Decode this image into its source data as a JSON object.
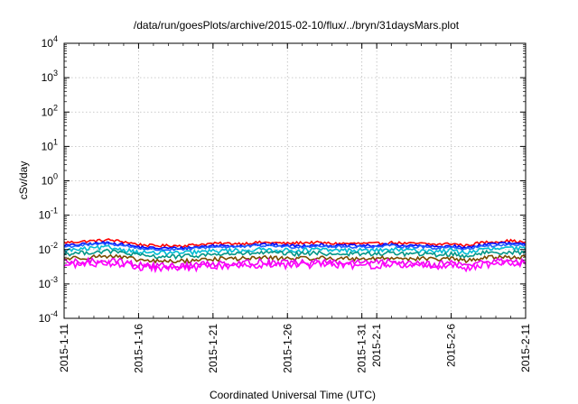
{
  "chart_data": {
    "type": "line",
    "title": "/data/run/goesPlots/archive/2015-02-10/flux/../bryn/31daysMars.plot",
    "xlabel": "Coordinated Universal Time (UTC)",
    "ylabel": "cSv/day",
    "yscale": "log",
    "ylim": [
      0.0001,
      10000
    ],
    "xlim": [
      "2015-1-11",
      "2015-2-11"
    ],
    "grid": true,
    "legend": "none",
    "y_ticks": [
      {
        "value": 0.0001,
        "base": "10",
        "exp": "-4"
      },
      {
        "value": 0.001,
        "base": "10",
        "exp": "-3"
      },
      {
        "value": 0.01,
        "base": "10",
        "exp": "-2"
      },
      {
        "value": 0.1,
        "base": "10",
        "exp": "-1"
      },
      {
        "value": 1,
        "base": "10",
        "exp": "0"
      },
      {
        "value": 10,
        "base": "10",
        "exp": "1"
      },
      {
        "value": 100,
        "base": "10",
        "exp": "2"
      },
      {
        "value": 1000,
        "base": "10",
        "exp": "3"
      },
      {
        "value": 10000,
        "base": "10",
        "exp": "4"
      }
    ],
    "x_ticks": [
      "2015-1-11",
      "2015-1-16",
      "2015-1-21",
      "2015-1-26",
      "2015-1-31",
      "2015-2-1",
      "2015-2-6",
      "2015-2-11"
    ],
    "series": [
      {
        "color": "#ff0000",
        "values_by_day": [
          0.016,
          0.017,
          0.018,
          0.019,
          0.017,
          0.014,
          0.013,
          0.013,
          0.013,
          0.014,
          0.015,
          0.015,
          0.015,
          0.016,
          0.016,
          0.015,
          0.016,
          0.016,
          0.015,
          0.015,
          0.015,
          0.015,
          0.016,
          0.015,
          0.015,
          0.014,
          0.015,
          0.013,
          0.016,
          0.017,
          0.018,
          0.016
        ]
      },
      {
        "color": "#0000ff",
        "values_by_day": [
          0.013,
          0.014,
          0.015,
          0.016,
          0.014,
          0.012,
          0.011,
          0.011,
          0.011,
          0.012,
          0.013,
          0.013,
          0.013,
          0.014,
          0.014,
          0.013,
          0.013,
          0.014,
          0.013,
          0.013,
          0.013,
          0.013,
          0.014,
          0.013,
          0.013,
          0.012,
          0.013,
          0.011,
          0.014,
          0.015,
          0.015,
          0.014
        ]
      },
      {
        "color": "#2060ff",
        "values_by_day": [
          0.012,
          0.013,
          0.014,
          0.015,
          0.013,
          0.011,
          0.01,
          0.01,
          0.01,
          0.011,
          0.012,
          0.012,
          0.012,
          0.013,
          0.013,
          0.012,
          0.012,
          0.013,
          0.012,
          0.012,
          0.012,
          0.012,
          0.013,
          0.012,
          0.012,
          0.011,
          0.012,
          0.01,
          0.013,
          0.013,
          0.014,
          0.013
        ]
      },
      {
        "color": "#00bcd4",
        "values_by_day": [
          0.0095,
          0.01,
          0.011,
          0.0115,
          0.01,
          0.0085,
          0.008,
          0.008,
          0.008,
          0.0085,
          0.009,
          0.0095,
          0.0095,
          0.01,
          0.01,
          0.0095,
          0.0095,
          0.01,
          0.0095,
          0.0095,
          0.0095,
          0.0095,
          0.01,
          0.0095,
          0.0095,
          0.009,
          0.0095,
          0.008,
          0.01,
          0.0105,
          0.011,
          0.0105
        ]
      },
      {
        "color": "#009688",
        "values_by_day": [
          0.0075,
          0.008,
          0.0085,
          0.009,
          0.008,
          0.0068,
          0.0063,
          0.0063,
          0.0063,
          0.0068,
          0.0072,
          0.0075,
          0.0075,
          0.008,
          0.008,
          0.0075,
          0.0075,
          0.008,
          0.0075,
          0.0075,
          0.0075,
          0.0075,
          0.008,
          0.0075,
          0.0075,
          0.007,
          0.0075,
          0.0063,
          0.008,
          0.0083,
          0.0085,
          0.0082
        ]
      },
      {
        "color": "#7a4a00",
        "values_by_day": [
          0.0055,
          0.0058,
          0.0062,
          0.0066,
          0.0058,
          0.005,
          0.0046,
          0.0046,
          0.0046,
          0.005,
          0.0053,
          0.0055,
          0.0055,
          0.0058,
          0.0058,
          0.0055,
          0.0055,
          0.0058,
          0.0055,
          0.0055,
          0.0055,
          0.0055,
          0.0058,
          0.0055,
          0.0055,
          0.0052,
          0.0055,
          0.0046,
          0.0058,
          0.006,
          0.0062,
          0.006
        ]
      },
      {
        "color": "#ee00ee",
        "values_by_day": [
          0.0042,
          0.0044,
          0.0047,
          0.005,
          0.0044,
          0.0037,
          0.0034,
          0.0034,
          0.0034,
          0.0037,
          0.004,
          0.0042,
          0.0042,
          0.0044,
          0.0044,
          0.0042,
          0.0042,
          0.0044,
          0.0042,
          0.0042,
          0.0042,
          0.0042,
          0.0044,
          0.0042,
          0.0042,
          0.0039,
          0.0042,
          0.0034,
          0.0044,
          0.0046,
          0.0047,
          0.0045
        ]
      },
      {
        "color": "#ff00ff",
        "values_by_day": [
          0.0035,
          0.0037,
          0.004,
          0.0042,
          0.0037,
          0.0031,
          0.0029,
          0.0029,
          0.0029,
          0.0031,
          0.0033,
          0.0035,
          0.0035,
          0.0037,
          0.0037,
          0.0035,
          0.0035,
          0.0037,
          0.0035,
          0.0035,
          0.0035,
          0.0035,
          0.0037,
          0.0035,
          0.0035,
          0.0033,
          0.0035,
          0.0029,
          0.0037,
          0.0039,
          0.004,
          0.0038
        ]
      }
    ]
  }
}
